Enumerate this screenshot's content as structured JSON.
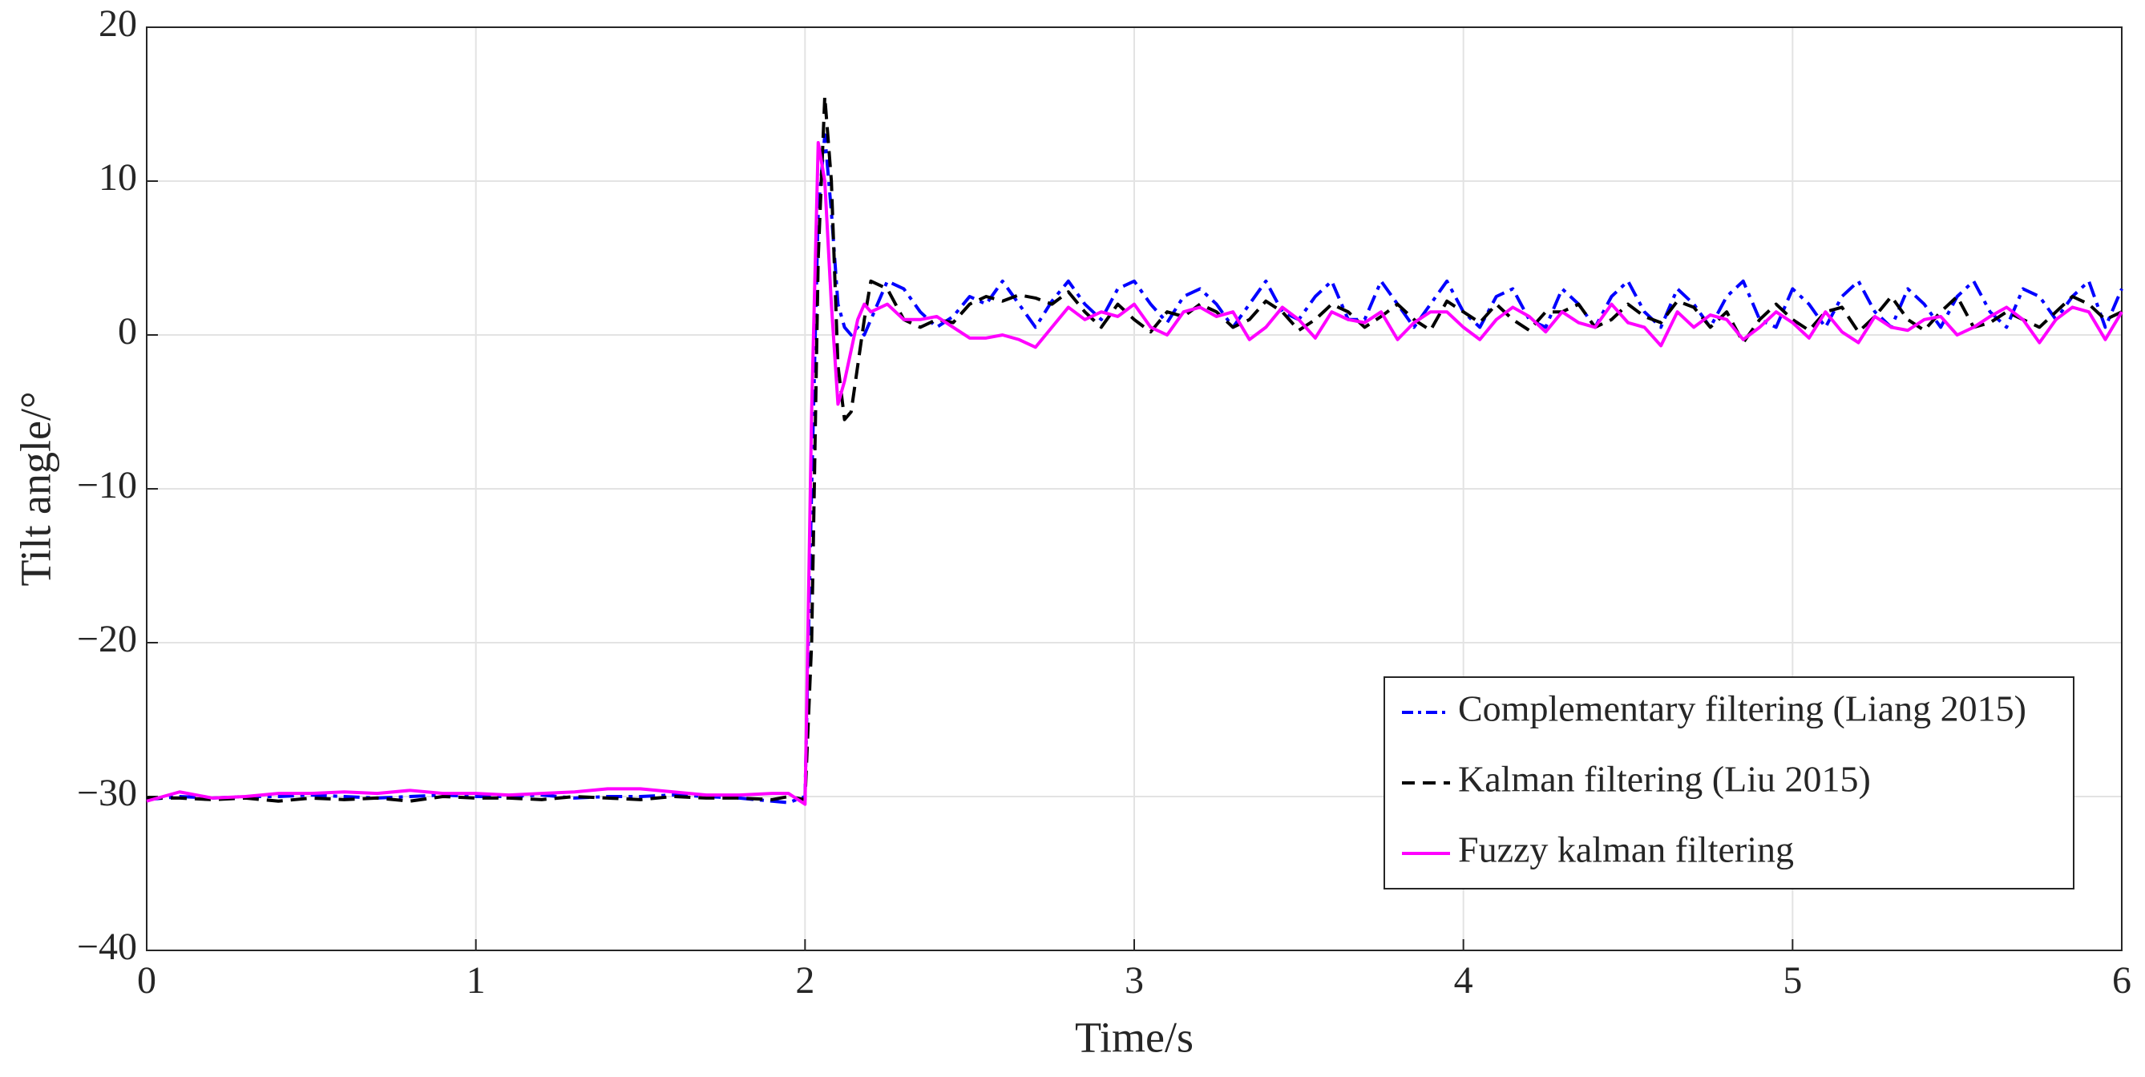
{
  "chart_data": {
    "type": "line",
    "xlabel": "Time/s",
    "ylabel": "Tilt angle/°",
    "xlim": [
      0,
      6
    ],
    "ylim": [
      -40,
      20
    ],
    "xticks": [
      0,
      1,
      2,
      3,
      4,
      5,
      6
    ],
    "yticks": [
      {
        "value": -40,
        "label": "−40"
      },
      {
        "value": -30,
        "label": "−30"
      },
      {
        "value": -20,
        "label": "−20"
      },
      {
        "value": -10,
        "label": "−10"
      },
      0,
      10,
      20
    ],
    "grid": true,
    "legend_position": "lower right",
    "x": [
      0,
      0.1,
      0.2,
      0.3,
      0.4,
      0.5,
      0.6,
      0.7,
      0.8,
      0.9,
      1.0,
      1.1,
      1.2,
      1.3,
      1.4,
      1.5,
      1.6,
      1.7,
      1.8,
      1.9,
      1.95,
      2.0,
      2.02,
      2.04,
      2.06,
      2.08,
      2.1,
      2.12,
      2.14,
      2.16,
      2.18,
      2.2,
      2.25,
      2.3,
      2.35,
      2.4,
      2.45,
      2.5,
      2.55,
      2.6,
      2.65,
      2.7,
      2.75,
      2.8,
      2.85,
      2.9,
      2.95,
      3.0,
      3.05,
      3.1,
      3.15,
      3.2,
      3.25,
      3.3,
      3.35,
      3.4,
      3.45,
      3.5,
      3.55,
      3.6,
      3.65,
      3.7,
      3.75,
      3.8,
      3.85,
      3.9,
      3.95,
      4.0,
      4.05,
      4.1,
      4.15,
      4.2,
      4.25,
      4.3,
      4.35,
      4.4,
      4.45,
      4.5,
      4.55,
      4.6,
      4.65,
      4.7,
      4.75,
      4.8,
      4.85,
      4.9,
      4.95,
      5.0,
      5.05,
      5.1,
      5.15,
      5.2,
      5.25,
      5.3,
      5.35,
      5.4,
      5.45,
      5.5,
      5.55,
      5.6,
      5.65,
      5.7,
      5.75,
      5.8,
      5.85,
      5.9,
      5.95,
      6.0
    ],
    "series": [
      {
        "name": "Complementary filtering (Liang 2015)",
        "color": "#0000ff",
        "line_style": "dashdot",
        "values": [
          -30.2,
          -30,
          -30.1,
          -30,
          -30,
          -29.9,
          -30,
          -30.1,
          -30,
          -29.9,
          -30,
          -30,
          -29.9,
          -30.1,
          -30,
          -30,
          -29.9,
          -30,
          -30.1,
          -30.3,
          -30.4,
          -30,
          -10,
          8,
          13,
          8,
          2,
          0.5,
          0,
          0.5,
          0,
          1,
          3.5,
          3,
          1.5,
          0.5,
          1.2,
          2.5,
          2.0,
          3.5,
          2.0,
          0.5,
          2.2,
          3.5,
          2.0,
          1.0,
          3.0,
          3.5,
          2.0,
          0.8,
          2.5,
          3.0,
          2.0,
          0.5,
          2.0,
          3.5,
          1.5,
          1.0,
          2.5,
          3.5,
          1.0,
          1.0,
          3.5,
          2.0,
          0.5,
          2.0,
          3.5,
          1.5,
          0.5,
          2.5,
          3.0,
          1.0,
          0.5,
          3.0,
          2.0,
          0.5,
          2.5,
          3.5,
          1.5,
          0.5,
          3.0,
          2.0,
          0.5,
          2.5,
          3.5,
          1.0,
          0.5,
          3.0,
          2.0,
          0.5,
          2.5,
          3.5,
          1.5,
          0.5,
          3.0,
          2.0,
          0.5,
          2.5,
          3.5,
          1.5,
          0.5,
          3.0,
          2.5,
          1.0,
          2.5,
          3.5,
          0.5,
          3.0
        ]
      },
      {
        "name": "Kalman filtering (Liu 2015)",
        "color": "#000000",
        "line_style": "dashed",
        "values": [
          -30.1,
          -30.1,
          -30.2,
          -30.1,
          -30.3,
          -30.1,
          -30.2,
          -30.1,
          -30.3,
          -30,
          -30.1,
          -30.1,
          -30.2,
          -30,
          -30.1,
          -30.2,
          -30,
          -30.1,
          -30.1,
          -30.2,
          -30,
          -30.2,
          -20,
          5,
          15.5,
          10,
          -2,
          -5.5,
          -5,
          -2,
          1,
          3.5,
          3,
          1,
          0.5,
          1.0,
          0.8,
          2.0,
          2.5,
          2.2,
          2.6,
          2.4,
          2.0,
          2.8,
          1.5,
          0.5,
          2.0,
          1.0,
          0.2,
          1.5,
          1.2,
          2.0,
          1.5,
          0.5,
          1.0,
          2.2,
          1.5,
          0.3,
          1.0,
          2.0,
          1.5,
          0.5,
          1.2,
          2.0,
          1.0,
          0.3,
          2.2,
          1.5,
          0.8,
          2.0,
          1.0,
          0.3,
          1.5,
          1.5,
          2.0,
          0.5,
          1.0,
          2.0,
          1.2,
          0.8,
          2.2,
          1.8,
          0.5,
          1.5,
          -0.5,
          1.0,
          2.0,
          1.0,
          0.3,
          1.5,
          1.8,
          0.2,
          1.2,
          2.5,
          1.0,
          0.3,
          1.5,
          2.5,
          0.5,
          0.8,
          1.5,
          1.0,
          0.5,
          1.5,
          2.5,
          2.0,
          1.0,
          1.5
        ]
      },
      {
        "name": "Fuzzy kalman filtering",
        "color": "#ff00ff",
        "line_style": "solid",
        "values": [
          -30.3,
          -29.7,
          -30.1,
          -30.0,
          -29.8,
          -29.8,
          -29.7,
          -29.8,
          -29.6,
          -29.8,
          -29.8,
          -29.9,
          -29.8,
          -29.7,
          -29.5,
          -29.5,
          -29.7,
          -29.9,
          -29.9,
          -29.8,
          -29.8,
          -30.5,
          -5,
          12.5,
          10,
          2,
          -4.5,
          -3,
          -1,
          1,
          2,
          1.5,
          2,
          1,
          1.0,
          1.2,
          0.5,
          -0.2,
          -0.2,
          0.0,
          -0.3,
          -0.8,
          0.5,
          1.8,
          1.0,
          1.5,
          1.2,
          2.0,
          0.5,
          0.0,
          1.5,
          1.8,
          1.2,
          1.5,
          -0.3,
          0.5,
          1.8,
          1.0,
          -0.2,
          1.5,
          1.0,
          0.8,
          1.5,
          -0.3,
          0.8,
          1.5,
          1.5,
          0.5,
          -0.3,
          1.0,
          1.8,
          1.2,
          0.2,
          1.5,
          0.8,
          0.5,
          2.0,
          0.8,
          0.5,
          -0.7,
          1.5,
          0.5,
          1.3,
          1.0,
          -0.3,
          0.5,
          1.5,
          0.8,
          -0.2,
          1.5,
          0.2,
          -0.5,
          1.2,
          0.5,
          0.3,
          1.0,
          1.2,
          0.0,
          0.5,
          1.2,
          1.8,
          1.0,
          -0.5,
          1.0,
          1.8,
          1.5,
          -0.3,
          1.5
        ]
      }
    ]
  }
}
